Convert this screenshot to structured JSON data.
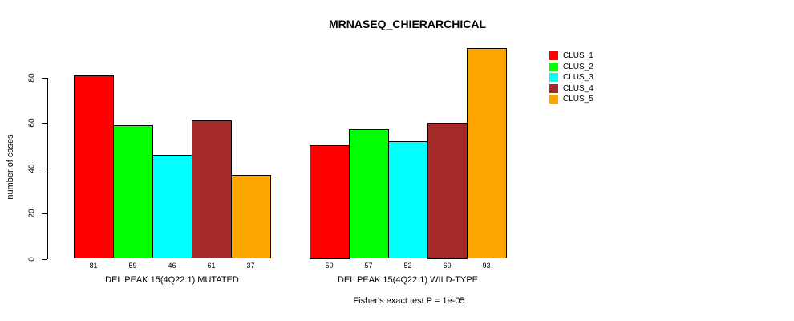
{
  "chart_data": {
    "type": "bar",
    "title": "MRNASEQ_CHIERARCHICAL",
    "ylabel": "number of cases",
    "xlabel": "",
    "ylim": [
      0,
      95
    ],
    "yticks": [
      0,
      20,
      40,
      60,
      80
    ],
    "grid": false,
    "legend_position": "top-right",
    "categories": [
      "DEL PEAK 15(4Q22.1) MUTATED",
      "DEL PEAK 15(4Q22.1) WILD-TYPE"
    ],
    "series": [
      {
        "name": "CLUS_1",
        "color": "#ff0000",
        "values": [
          81,
          50
        ]
      },
      {
        "name": "CLUS_2",
        "color": "#00ff00",
        "values": [
          59,
          57
        ]
      },
      {
        "name": "CLUS_3",
        "color": "#00ffff",
        "values": [
          46,
          52
        ]
      },
      {
        "name": "CLUS_4",
        "color": "#a52a2a",
        "values": [
          61,
          60
        ]
      },
      {
        "name": "CLUS_5",
        "color": "#ffa500",
        "values": [
          37,
          93
        ]
      }
    ],
    "bar_value_labels": [
      [
        81,
        59,
        46,
        61,
        37
      ],
      [
        50,
        57,
        52,
        60,
        93
      ]
    ],
    "footnote": "Fisher's exact test P = 1e-05"
  }
}
